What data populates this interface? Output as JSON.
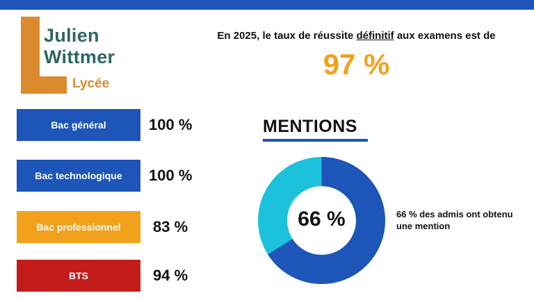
{
  "logo": {
    "line1": "Julien",
    "line2": "Wittmer",
    "subtitle": "Lycée"
  },
  "headline": {
    "before": "En 2025, le taux de réussite ",
    "emphasis": "définitif",
    "after": " aux examens est de",
    "rate": "97 %"
  },
  "exams": [
    {
      "label": "Bac général",
      "value": "100 %",
      "color": "#1d55b8"
    },
    {
      "label": "Bac technologique",
      "value": "100 %",
      "color": "#1d55b8"
    },
    {
      "label": "Bac professionnel",
      "value": "83 %",
      "color": "#f2a11c"
    },
    {
      "label": "BTS",
      "value": "94 %",
      "color": "#c41b1b"
    }
  ],
  "mentions": {
    "title": "MENTIONS",
    "percent_label": "66 %",
    "percent": 66,
    "note": "66 % des admis ont obtenu une mention",
    "colors": {
      "mention": "#1d55b8",
      "rest": "#1cc2dc"
    }
  },
  "colors": {
    "top_bar": "#1d55b8",
    "logo_orange": "#dc8a2e",
    "logo_teal": "#2e6663",
    "rate_orange": "#f2a11c"
  }
}
